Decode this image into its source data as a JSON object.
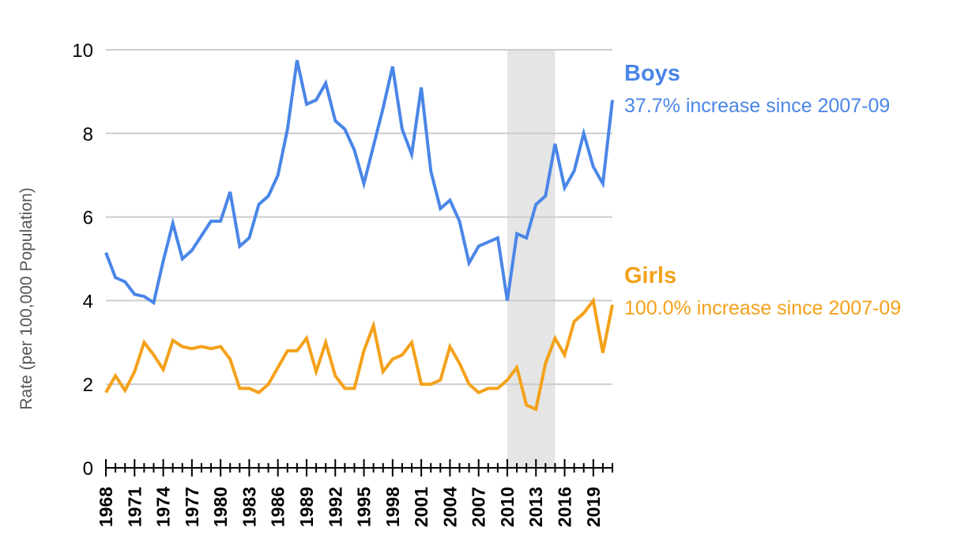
{
  "chart_data": {
    "type": "line",
    "title": "",
    "xlabel": "",
    "ylabel": "Rate (per 100,000 Population)",
    "ylim": [
      0,
      10
    ],
    "yticks": [
      0,
      2,
      4,
      6,
      8,
      10
    ],
    "xlim": [
      1968,
      2021
    ],
    "xticks": [
      1968,
      1969,
      1970,
      1971,
      1972,
      1973,
      1974,
      1975,
      1976,
      1977,
      1978,
      1979,
      1980,
      1981,
      1982,
      1983,
      1984,
      1985,
      1986,
      1987,
      1988,
      1989,
      1990,
      1991,
      1992,
      1993,
      1994,
      1995,
      1996,
      1997,
      1998,
      1999,
      2000,
      2001,
      2002,
      2003,
      2004,
      2005,
      2006,
      2007,
      2008,
      2009,
      2010,
      2011,
      2012,
      2013,
      2014,
      2015,
      2016,
      2017,
      2018,
      2019,
      2020,
      2021
    ],
    "xtick_labels": [
      "1968",
      "1971",
      "1974",
      "1977",
      "1980",
      "1983",
      "1986",
      "1989",
      "1992",
      "1995",
      "1998",
      "2001",
      "2004",
      "2007",
      "2010",
      "2013",
      "2016",
      "2019"
    ],
    "grid": true,
    "shaded_region": {
      "x": [
        2010,
        2015
      ]
    },
    "x": [
      1968,
      1969,
      1970,
      1971,
      1972,
      1973,
      1974,
      1975,
      1976,
      1977,
      1978,
      1979,
      1980,
      1981,
      1982,
      1983,
      1984,
      1985,
      1986,
      1987,
      1988,
      1989,
      1990,
      1991,
      1992,
      1993,
      1994,
      1995,
      1996,
      1997,
      1998,
      1999,
      2000,
      2001,
      2002,
      2003,
      2004,
      2005,
      2006,
      2007,
      2008,
      2009,
      2010,
      2011,
      2012,
      2013,
      2014,
      2015,
      2016,
      2017,
      2018,
      2019,
      2020,
      2021
    ],
    "series": [
      {
        "name": "Boys",
        "color": "#4a86e8",
        "annotation": "37.7% increase since 2007-09",
        "values": [
          5.15,
          4.55,
          4.45,
          4.15,
          4.1,
          3.95,
          4.95,
          5.85,
          5.0,
          5.2,
          5.55,
          5.9,
          5.9,
          6.6,
          5.3,
          5.5,
          6.3,
          6.5,
          7.0,
          8.1,
          9.75,
          8.7,
          8.8,
          9.2,
          8.3,
          8.1,
          7.6,
          6.8,
          7.7,
          8.6,
          9.6,
          8.1,
          7.5,
          9.1,
          7.1,
          6.2,
          6.4,
          5.9,
          4.9,
          5.3,
          5.4,
          5.5,
          4.0,
          5.6,
          5.5,
          6.3,
          6.5,
          7.75,
          6.7,
          7.1,
          8.0,
          7.2,
          6.8,
          8.8
        ]
      },
      {
        "name": "Girls",
        "color": "#f4a11a",
        "annotation": "100.0% increase since 2007-09",
        "values": [
          1.8,
          2.2,
          1.85,
          2.3,
          3.0,
          2.7,
          2.35,
          3.05,
          2.9,
          2.85,
          2.9,
          2.85,
          2.9,
          2.6,
          1.9,
          1.9,
          1.8,
          2.0,
          2.4,
          2.8,
          2.8,
          3.1,
          2.3,
          3.0,
          2.2,
          1.9,
          1.9,
          2.8,
          3.4,
          2.3,
          2.6,
          2.7,
          3.0,
          2.0,
          2.0,
          2.1,
          2.9,
          2.5,
          2.0,
          1.8,
          1.9,
          1.9,
          2.1,
          2.4,
          1.5,
          1.4,
          2.5,
          3.1,
          2.7,
          3.5,
          3.7,
          4.0,
          2.75,
          3.9
        ]
      }
    ]
  }
}
